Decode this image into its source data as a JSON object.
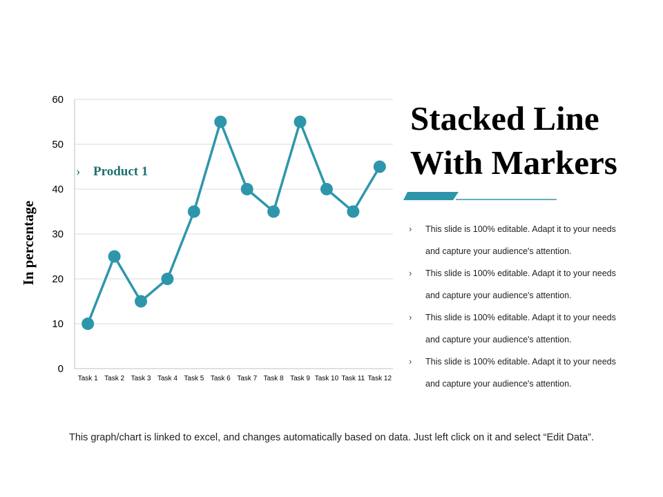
{
  "slide": {
    "title_lines": [
      "Stacked Line",
      "With Markers"
    ],
    "bullets": [
      "This slide is 100% editable. Adapt it to your needs and capture your audience's attention.",
      "This slide is 100% editable. Adapt it to your needs and capture your audience's attention.",
      "This slide is 100% editable. Adapt it to your needs and capture your audience's attention.",
      "This slide is 100% editable. Adapt it to your needs and capture your audience's attention."
    ],
    "bullet_icon": "chevron-right-icon",
    "footer": "This graph/chart is linked to excel, and changes automatically based on data. Just left click on it and select “Edit Data”.",
    "colors": {
      "accent": "#2e96ab",
      "legend_text": "#1f6f6f",
      "gridline": "#d9d9d9"
    }
  },
  "chart_data": {
    "type": "line",
    "categories": [
      "Task 1",
      "Task 2",
      "Task 3",
      "Task 4",
      "Task 5",
      "Task 6",
      "Task 7",
      "Task 8",
      "Task 9",
      "Task 10",
      "Task 11",
      "Task 12"
    ],
    "series": [
      {
        "name": "Product 1",
        "values": [
          10,
          25,
          15,
          20,
          35,
          55,
          40,
          35,
          55,
          40,
          35,
          45
        ]
      }
    ],
    "ylabel": "In percentage",
    "xlabel": "",
    "ylim": [
      0,
      60
    ],
    "yticks": [
      0,
      10,
      20,
      30,
      40,
      50,
      60
    ],
    "grid": true,
    "markers": true,
    "legend_position": "top-left inside plot",
    "legend_icon": "chevron-right-icon"
  }
}
